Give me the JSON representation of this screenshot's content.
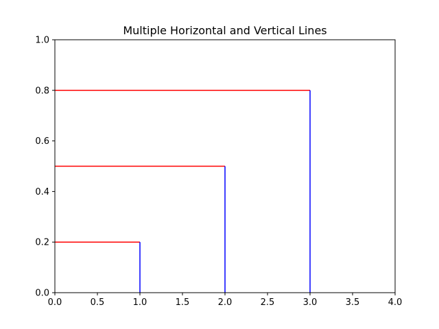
{
  "chart_data": {
    "type": "line",
    "title": "Multiple Horizontal and Vertical Lines",
    "xlabel": "",
    "ylabel": "",
    "xlim": [
      0.0,
      4.0
    ],
    "ylim": [
      0.0,
      1.0
    ],
    "grid": false,
    "x_ticks": [
      0.0,
      0.5,
      1.0,
      1.5,
      2.0,
      2.5,
      3.0,
      3.5,
      4.0
    ],
    "x_tick_labels": [
      "0.0",
      "0.5",
      "1.0",
      "1.5",
      "2.0",
      "2.5",
      "3.0",
      "3.5",
      "4.0"
    ],
    "y_ticks": [
      0.0,
      0.2,
      0.4,
      0.6,
      0.8,
      1.0
    ],
    "y_tick_labels": [
      "0.0",
      "0.2",
      "0.4",
      "0.6",
      "0.8",
      "1.0"
    ],
    "horizontal_lines": [
      {
        "y": 0.2,
        "xmin": 0.0,
        "xmax": 1.0,
        "color": "#ff0000"
      },
      {
        "y": 0.5,
        "xmin": 0.0,
        "xmax": 2.0,
        "color": "#ff0000"
      },
      {
        "y": 0.8,
        "xmin": 0.0,
        "xmax": 3.0,
        "color": "#ff0000"
      }
    ],
    "vertical_lines": [
      {
        "x": 1.0,
        "ymin": 0.0,
        "ymax": 0.2,
        "color": "#0000ff"
      },
      {
        "x": 2.0,
        "ymin": 0.0,
        "ymax": 0.5,
        "color": "#0000ff"
      },
      {
        "x": 3.0,
        "ymin": 0.0,
        "ymax": 0.8,
        "color": "#0000ff"
      }
    ]
  }
}
